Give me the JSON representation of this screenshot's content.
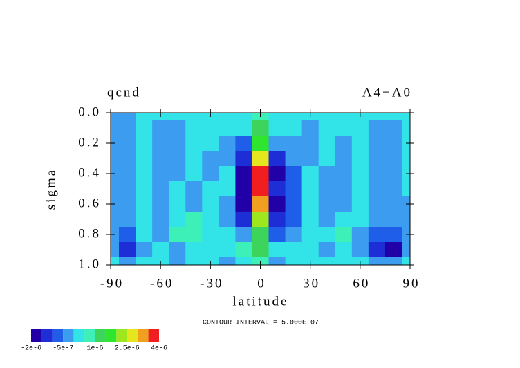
{
  "chart_data": {
    "type": "contour",
    "title": "qcnd",
    "right_title": "A4−A0",
    "x_label": "latitude",
    "y_label": "sigma",
    "note": "CONTOUR INTERVAL = 5.000E-07",
    "x": [
      -90,
      -80,
      -70,
      -60,
      -50,
      -40,
      -30,
      -20,
      -10,
      0,
      10,
      20,
      30,
      40,
      50,
      60,
      70,
      80,
      90
    ],
    "y": [
      0,
      0.1,
      0.2,
      0.3,
      0.4,
      0.5,
      0.6,
      0.7,
      0.8,
      0.9,
      1
    ],
    "z": [
      [
        -2e-07,
        -2e-07,
        2e-07,
        2e-07,
        2e-07,
        2e-07,
        2e-07,
        2e-07,
        2e-07,
        7e-07,
        2e-07,
        2e-07,
        2e-07,
        2e-07,
        2e-07,
        2e-07,
        2e-07,
        2e-07,
        2e-07
      ],
      [
        -2e-07,
        -2e-07,
        2e-07,
        -2e-07,
        -2e-07,
        2e-07,
        2e-07,
        2e-07,
        2e-07,
        1.2e-06,
        2e-07,
        2e-07,
        -2e-07,
        2e-07,
        2e-07,
        2e-07,
        -2e-07,
        -2e-07,
        2e-07
      ],
      [
        -2e-07,
        -2e-07,
        2e-07,
        -2e-07,
        -2e-07,
        2e-07,
        2e-07,
        -2e-07,
        -7e-07,
        1.7e-06,
        -2e-07,
        -2e-07,
        -2e-07,
        2e-07,
        -2e-07,
        2e-07,
        -2e-07,
        -2e-07,
        2e-07
      ],
      [
        -2e-07,
        -2e-07,
        2e-07,
        -2e-07,
        -2e-07,
        2e-07,
        -2e-07,
        -2e-07,
        -1.2e-06,
        2.7e-06,
        -1.2e-06,
        -2e-07,
        -2e-07,
        2e-07,
        -2e-07,
        2e-07,
        -2e-07,
        -2e-07,
        2e-07
      ],
      [
        -2e-07,
        -2e-07,
        2e-07,
        -2e-07,
        -2e-07,
        2e-07,
        -2e-07,
        2e-07,
        -1.7e-06,
        3.7e-06,
        -1.7e-06,
        -7e-07,
        2e-07,
        -2e-07,
        -2e-07,
        2e-07,
        -2e-07,
        -2e-07,
        2e-07
      ],
      [
        -2e-07,
        -2e-07,
        2e-07,
        -2e-07,
        2e-07,
        -2e-07,
        2e-07,
        2e-07,
        -1.7e-06,
        3.7e-06,
        -1.2e-06,
        -7e-07,
        2e-07,
        -2e-07,
        -2e-07,
        2e-07,
        -2e-07,
        -2e-07,
        2e-07
      ],
      [
        -2e-07,
        -2e-07,
        2e-07,
        -2e-07,
        2e-07,
        -2e-07,
        2e-07,
        -2e-07,
        -1.7e-06,
        3.2e-06,
        -1.7e-06,
        -7e-07,
        2e-07,
        -2e-07,
        -2e-07,
        2e-07,
        -2e-07,
        -2e-07,
        -2e-07
      ],
      [
        -2e-07,
        -2e-07,
        2e-07,
        -2e-07,
        2e-07,
        7e-07,
        2e-07,
        -2e-07,
        -1.2e-06,
        2.2e-06,
        -1.2e-06,
        -7e-07,
        2e-07,
        -2e-07,
        2e-07,
        2e-07,
        -2e-07,
        -2e-07,
        -2e-07
      ],
      [
        -2e-07,
        -7e-07,
        2e-07,
        -2e-07,
        7e-07,
        7e-07,
        2e-07,
        2e-07,
        -2e-07,
        1.2e-06,
        -7e-07,
        -2e-07,
        2e-07,
        2e-07,
        7e-07,
        -2e-07,
        -7e-07,
        -7e-07,
        -2e-07
      ],
      [
        -2e-07,
        -1.2e-06,
        -2e-07,
        2e-07,
        -2e-07,
        2e-07,
        2e-07,
        2e-07,
        7e-07,
        1.2e-06,
        2e-07,
        2e-07,
        2e-07,
        -2e-07,
        2e-07,
        -2e-07,
        -1.2e-06,
        -1.7e-06,
        -2e-07
      ],
      [
        2e-07,
        -2e-07,
        2e-07,
        2e-07,
        -2e-07,
        2e-07,
        2e-07,
        -2e-07,
        2e-07,
        7e-07,
        -2e-07,
        2e-07,
        2e-07,
        2e-07,
        2e-07,
        2e-07,
        -2e-07,
        -2e-07,
        2e-07
      ]
    ],
    "levels": [
      -2e-06,
      -1.5e-06,
      -1e-06,
      -5e-07,
      0,
      5e-07,
      1e-06,
      1.5e-06,
      2e-06,
      2.5e-06,
      3e-06,
      3.5e-06,
      4e-06
    ],
    "colors": [
      "#2200a8",
      "#1e2ed6",
      "#1e5ee8",
      "#3c9cf0",
      "#32e4e8",
      "#3cf0b8",
      "#3cd45a",
      "#2ee62e",
      "#9ee61e",
      "#e6e61e",
      "#f0a01e",
      "#f01e1e"
    ],
    "colorbar_ticks": [
      {
        "value": -2e-06,
        "label": "-2e-6"
      },
      {
        "value": -5e-07,
        "label": "-5e-7"
      },
      {
        "value": 1e-06,
        "label": "1e-6"
      },
      {
        "value": 2.5e-06,
        "label": "2.5e-6"
      },
      {
        "value": 4e-06,
        "label": "4e-6"
      }
    ],
    "xlim": [
      -90,
      90
    ],
    "xticks": [
      -90,
      -60,
      -30,
      0,
      30,
      60,
      90
    ],
    "ylim": [
      0,
      1
    ],
    "y_reversed": true,
    "yticks": [
      {
        "value": 0,
        "label": "0.0"
      },
      0.2,
      0.4,
      0.6,
      0.8,
      {
        "value": 1,
        "label": "1.0"
      }
    ]
  }
}
